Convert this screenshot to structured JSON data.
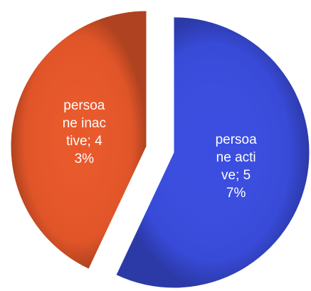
{
  "chart_data": {
    "type": "pie",
    "values": [
      57,
      43
    ],
    "value_labels": [
      "persoane active; 57%",
      "persoane inactive; 43%"
    ],
    "colors": [
      "#3a4de0",
      "#e9582a"
    ]
  }
}
